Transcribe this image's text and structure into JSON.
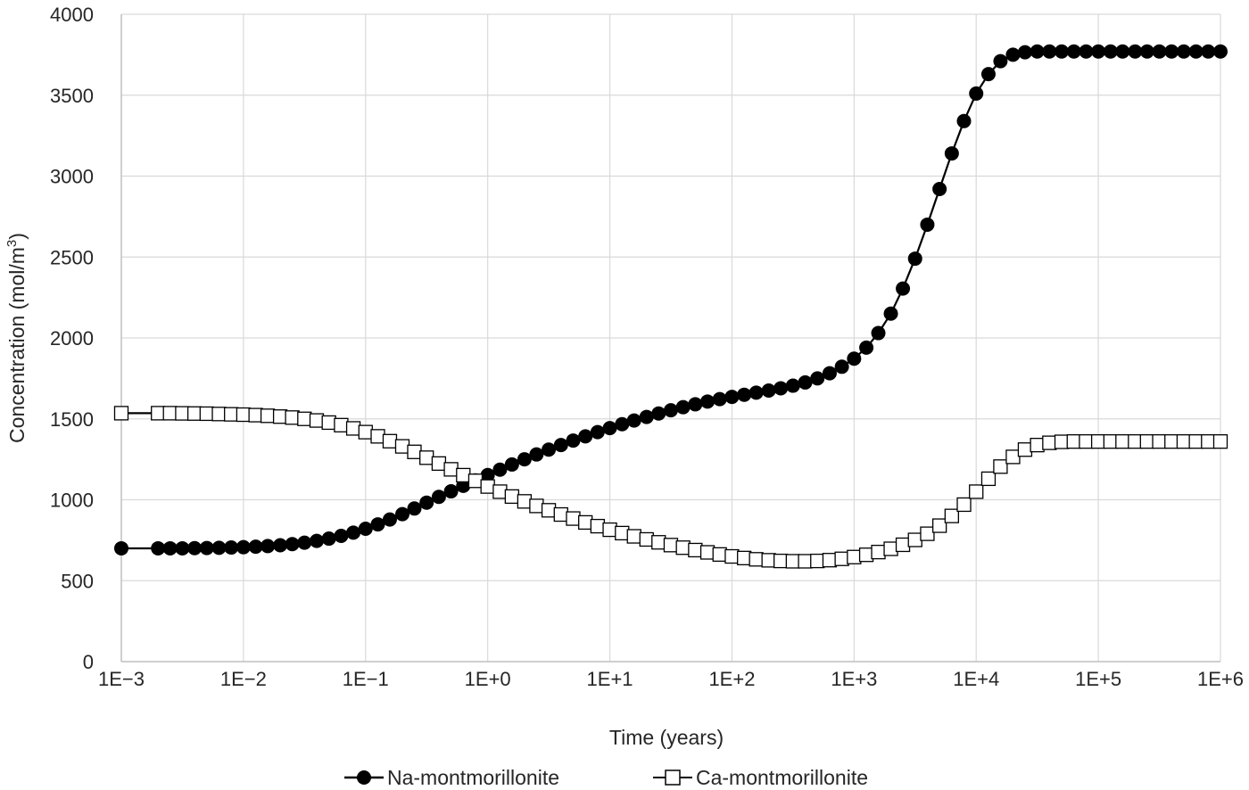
{
  "chart_data": {
    "type": "line",
    "title": "",
    "xlabel": "Time (years)",
    "ylabel_main": "Concentration  (mol/m",
    "ylabel_sup": "3",
    "ylabel_end": ")",
    "x_scale": "log",
    "xlim": [
      0.001,
      1000000
    ],
    "ylim": [
      0,
      4000
    ],
    "x_ticks": [
      0.001,
      0.01,
      0.1,
      1,
      10,
      100,
      1000,
      10000,
      100000,
      1000000
    ],
    "x_tick_labels": [
      "1E−3",
      "1E−2",
      "1E−1",
      "1E+0",
      "1E+1",
      "1E+2",
      "1E+3",
      "1E+4",
      "1E+5",
      "1E+6"
    ],
    "y_ticks": [
      0,
      500,
      1000,
      1500,
      2000,
      2500,
      3000,
      3500,
      4000
    ],
    "y_tick_labels": [
      "0",
      "500",
      "1000",
      "1500",
      "2000",
      "2500",
      "3000",
      "3500",
      "4000"
    ],
    "grid": true,
    "legend_position": "bottom",
    "series": [
      {
        "name": "Na-montmorillonite",
        "marker": "filled-circle",
        "color": "#000000",
        "x": [
          0.001,
          0.002,
          0.00251,
          0.00316,
          0.00398,
          0.00501,
          0.00631,
          0.00794,
          0.01,
          0.0126,
          0.0158,
          0.02,
          0.0251,
          0.0316,
          0.0398,
          0.0501,
          0.0631,
          0.0794,
          0.1,
          0.126,
          0.158,
          0.2,
          0.251,
          0.316,
          0.398,
          0.501,
          0.631,
          0.794,
          1,
          1.26,
          1.58,
          2,
          2.51,
          3.16,
          3.98,
          5.01,
          6.31,
          7.94,
          10,
          12.6,
          15.8,
          20,
          25.1,
          31.6,
          39.8,
          50.1,
          63.1,
          79.4,
          100,
          126,
          158,
          200,
          251,
          316,
          398,
          501,
          631,
          794,
          1000,
          1260,
          1580,
          2000,
          2510,
          3160,
          3980,
          5010,
          6310,
          7940,
          10000,
          12600,
          15800,
          20000,
          25100,
          31600,
          39800,
          50100,
          63100,
          79400,
          100000,
          126000,
          158000,
          200000,
          251000,
          316000,
          398000,
          501000,
          631000,
          794000,
          1000000
        ],
        "y": [
          700,
          700,
          700,
          700,
          701,
          702,
          703,
          705,
          707,
          710,
          714,
          719,
          726,
          735,
          746,
          760,
          777,
          797,
          821,
          848,
          878,
          911,
          946,
          982,
          1018,
          1052,
          1086,
          1120,
          1153,
          1186,
          1218,
          1250,
          1280,
          1310,
          1338,
          1366,
          1392,
          1418,
          1443,
          1467,
          1490,
          1512,
          1533,
          1553,
          1572,
          1590,
          1607,
          1622,
          1636,
          1649,
          1662,
          1675,
          1689,
          1705,
          1725,
          1750,
          1782,
          1822,
          1872,
          1940,
          2030,
          2150,
          2305,
          2490,
          2700,
          2920,
          3140,
          3340,
          3510,
          3630,
          3710,
          3750,
          3765,
          3770,
          3770,
          3770,
          3770,
          3770,
          3770,
          3770,
          3770,
          3770,
          3770,
          3770,
          3770,
          3770,
          3770,
          3770,
          3770
        ]
      },
      {
        "name": "Ca-montmorillonite",
        "marker": "open-square",
        "color": "#000000",
        "x": [
          0.001,
          0.002,
          0.00251,
          0.00316,
          0.00398,
          0.00501,
          0.00631,
          0.00794,
          0.01,
          0.0126,
          0.0158,
          0.02,
          0.0251,
          0.0316,
          0.0398,
          0.0501,
          0.0631,
          0.0794,
          0.1,
          0.126,
          0.158,
          0.2,
          0.251,
          0.316,
          0.398,
          0.501,
          0.631,
          0.794,
          1,
          1.26,
          1.58,
          2,
          2.51,
          3.16,
          3.98,
          5.01,
          6.31,
          7.94,
          10,
          12.6,
          15.8,
          20,
          25.1,
          31.6,
          39.8,
          50.1,
          63.1,
          79.4,
          100,
          126,
          158,
          200,
          251,
          316,
          398,
          501,
          631,
          794,
          1000,
          1260,
          1580,
          2000,
          2510,
          3160,
          3980,
          5010,
          6310,
          7940,
          10000,
          12600,
          15800,
          20000,
          25100,
          31600,
          39800,
          50100,
          63100,
          79400,
          100000,
          126000,
          158000,
          200000,
          251000,
          316000,
          398000,
          501000,
          631000,
          794000,
          1000000
        ],
        "y": [
          1535,
          1535,
          1535,
          1534,
          1533,
          1532,
          1530,
          1528,
          1526,
          1523,
          1519,
          1514,
          1508,
          1500,
          1490,
          1477,
          1461,
          1441,
          1418,
          1392,
          1362,
          1330,
          1296,
          1260,
          1224,
          1188,
          1152,
          1117,
          1082,
          1050,
          1020,
          990,
          962,
          935,
          909,
          884,
          860,
          837,
          815,
          794,
          774,
          755,
          737,
          720,
          704,
          689,
          675,
          662,
          650,
          640,
          632,
          626,
          622,
          620,
          620,
          622,
          627,
          635,
          646,
          660,
          677,
          697,
          722,
          752,
          790,
          840,
          900,
          970,
          1050,
          1130,
          1205,
          1265,
          1310,
          1338,
          1352,
          1358,
          1360,
          1360,
          1360,
          1360,
          1360,
          1360,
          1360,
          1360,
          1360,
          1360,
          1360,
          1360,
          1360
        ]
      }
    ]
  }
}
